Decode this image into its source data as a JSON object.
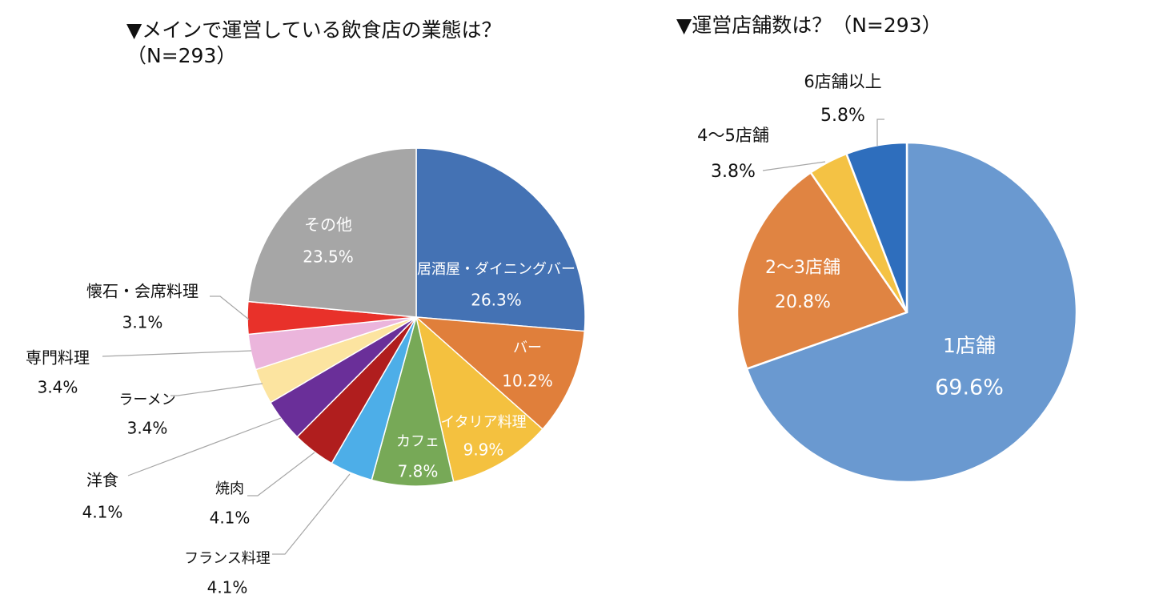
{
  "charts_title": {
    "left_line1": "▼メインで運営している飲食店の業態は？",
    "left_line2": "（N=293）",
    "right": "▼運営店舗数は？（N=293）"
  },
  "chart_data": [
    {
      "type": "pie",
      "title": "▼メインで運営している飲食店の業態は？（N=293）",
      "slices": [
        {
          "label": "居酒屋・ダイニングバー",
          "value": 26.3,
          "value_label": "26.3%",
          "color": "#4472b4"
        },
        {
          "label": "バー",
          "value": 10.2,
          "value_label": "10.2%",
          "color": "#e07f3b"
        },
        {
          "label": "イタリア料理",
          "value": 9.9,
          "value_label": "9.9%",
          "color": "#f4c13f"
        },
        {
          "label": "カフェ",
          "value": 7.8,
          "value_label": "7.8%",
          "color": "#77a957"
        },
        {
          "label": "フランス料理",
          "value": 4.1,
          "value_label": "4.1%",
          "color": "#4daee8"
        },
        {
          "label": "焼肉",
          "value": 4.1,
          "value_label": "4.1%",
          "color": "#b01e1e"
        },
        {
          "label": "洋食",
          "value": 4.1,
          "value_label": "4.1%",
          "color": "#6a2f99"
        },
        {
          "label": "ラーメン",
          "value": 3.4,
          "value_label": "3.4%",
          "color": "#fce4a0"
        },
        {
          "label": "専門料理",
          "value": 3.4,
          "value_label": "3.4%",
          "color": "#ebb5dc"
        },
        {
          "label": "懐石・会席料理",
          "value": 3.1,
          "value_label": "3.1%",
          "color": "#e8312a"
        },
        {
          "label": "その他",
          "value": 23.5,
          "value_label": "23.5%",
          "color": "#a6a6a6"
        }
      ]
    },
    {
      "type": "pie",
      "title": "▼運営店舗数は？（N=293）",
      "slices": [
        {
          "label": "1店舗",
          "value": 69.6,
          "value_label": "69.6%",
          "color": "#6a99d0"
        },
        {
          "label": "2～3店舗",
          "value": 20.8,
          "value_label": "20.8%",
          "color": "#e08442"
        },
        {
          "label": "4～5店舗",
          "value": 3.8,
          "value_label": "3.8%",
          "color": "#f4c244"
        },
        {
          "label": "6店舗以上",
          "value": 5.8,
          "value_label": "5.8%",
          "color": "#2e6ebd"
        }
      ]
    }
  ]
}
